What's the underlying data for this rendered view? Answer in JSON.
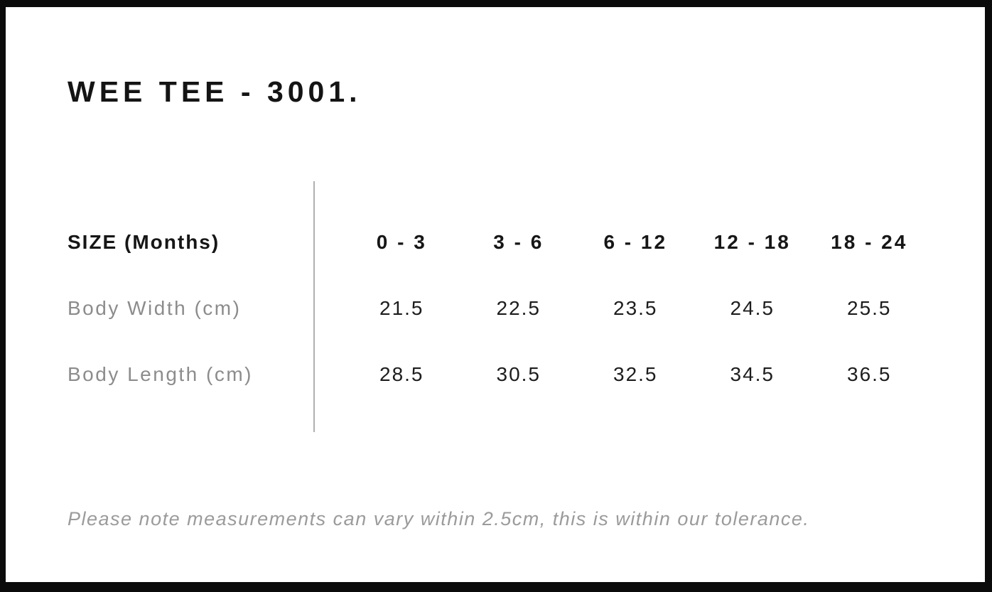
{
  "page": {
    "title": "WEE TEE - 3001.",
    "note": "Please note measurements can vary within 2.5cm, this is within our tolerance."
  },
  "chart_data": {
    "type": "table",
    "title": "WEE TEE - 3001.",
    "columns": [
      "SIZE (Months)",
      "0 - 3",
      "3 - 6",
      "6 - 12",
      "12 - 18",
      "18 - 24"
    ],
    "rows": [
      {
        "label": "Body Width (cm)",
        "values": [
          "21.5",
          "22.5",
          "23.5",
          "24.5",
          "25.5"
        ]
      },
      {
        "label": "Body Length (cm)",
        "values": [
          "28.5",
          "30.5",
          "32.5",
          "34.5",
          "36.5"
        ]
      }
    ],
    "note": "Please note measurements can vary within 2.5cm, this is within our tolerance.",
    "layout_hints": {
      "divider": "vertical line between label column and size columns",
      "grid": "off"
    },
    "colors": {
      "frame_border": "#0b0b0b",
      "heading_text": "#141414",
      "value_text": "#1d1d1d",
      "muted_label_text": "#8c8c8c",
      "note_text": "#9b9b9b",
      "divider": "#b0b0b0",
      "background": "#ffffff"
    }
  }
}
